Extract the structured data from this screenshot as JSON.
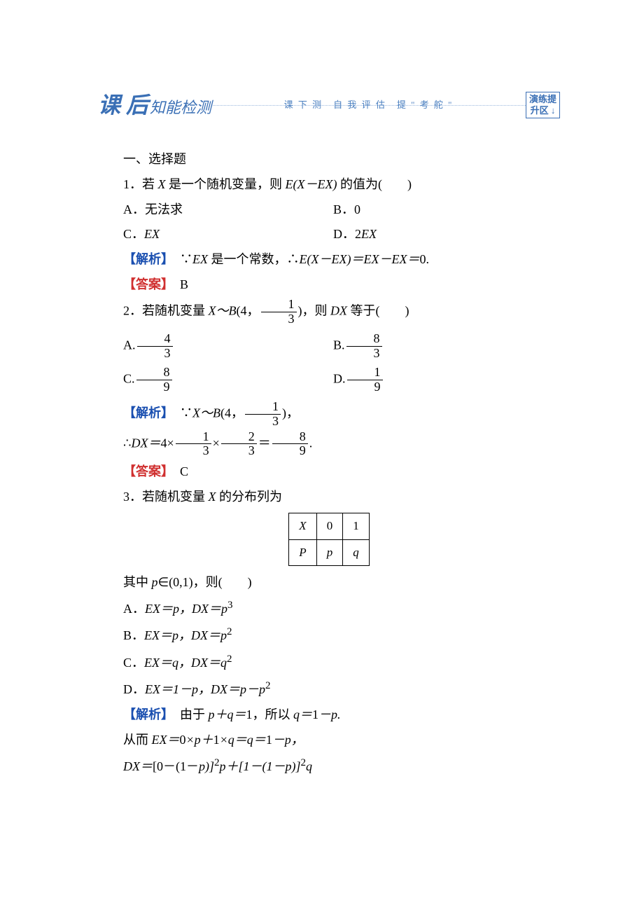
{
  "banner": {
    "big": "课 后",
    "small": "知能检测",
    "mid": "课 下 测　自 我 评 估　提 \" 考 舵 \"",
    "right_l1": "演练提",
    "right_l2": "升区 ↓"
  },
  "section_heading": "一、选择题",
  "q1": {
    "stem_a": "1．若 ",
    "stem_b": " 是一个随机变量，则 ",
    "stem_c": " 的值为(　　)",
    "X": "X",
    "expr": "E(X－EX)",
    "optA": "A．无法求",
    "optB": "B．0",
    "optC_a": "C．",
    "optC_b": "EX",
    "optD_a": "D．2",
    "optD_b": "EX",
    "expl_label": "【解析】",
    "expl_a": "∵",
    "expl_b": "EX",
    "expl_c": " 是一个常数，∴",
    "expl_d": "E(X－EX)＝EX－EX＝",
    "expl_e": "0.",
    "ans_label": "【答案】",
    "ans": "B"
  },
  "q2": {
    "stem_a": "2．若随机变量 ",
    "stem_b": "X～B",
    "stem_c": "(4，",
    "frac1_num": "1",
    "frac1_den": "3",
    "stem_d": ")，则 ",
    "stem_e": "DX",
    "stem_f": " 等于(　　)",
    "optA": "A.",
    "A_num": "4",
    "A_den": "3",
    "optB": "B.",
    "B_num": "8",
    "B_den": "3",
    "optC": "C.",
    "C_num": "8",
    "C_den": "9",
    "optD": "D.",
    "D_num": "1",
    "D_den": "9",
    "expl_label": "【解析】",
    "expl_a": "∵",
    "expl_b": "X～B",
    "expl_c": "(4，",
    "expl_d": ")，",
    "line2_a": "∴",
    "line2_b": "DX＝",
    "line2_c": "4×",
    "f2n": "1",
    "f2d": "3",
    "line2_d": "×",
    "f3n": "2",
    "f3d": "3",
    "line2_e": "＝",
    "f4n": "8",
    "f4d": "9",
    "line2_f": ".",
    "ans_label": "【答案】",
    "ans": "C"
  },
  "q3": {
    "stem_a": "3．若随机变量 ",
    "stem_b": "X",
    "stem_c": " 的分布列为",
    "t_X": "X",
    "t_0": "0",
    "t_1": "1",
    "t_P": "P",
    "t_p": "p",
    "t_q": "q",
    "cond_a": "其中 ",
    "cond_b": "p",
    "cond_c": "∈(0,1)，则(　　)",
    "optA_a": "A．",
    "optA_b": "EX＝p，DX＝p",
    "optA_c": "3",
    "optB_a": "B．",
    "optB_b": "EX＝p，DX＝p",
    "optB_c": "2",
    "optC_a": "C．",
    "optC_b": "EX＝q，DX＝q",
    "optC_c": "2",
    "optD_a": "D．",
    "optD_b": "EX＝1－p，DX＝p－p",
    "optD_c": "2",
    "expl_label": "【解析】",
    "expl_a": "由于 ",
    "expl_b": "p＋q＝",
    "expl_c": "1，所以 ",
    "expl_d": "q＝",
    "expl_e": "1",
    "expl_f": "－p.",
    "l2_a": "从而 ",
    "l2_b": "EX＝",
    "l2_c": "0",
    "l2_d": "×p＋",
    "l2_e": "1",
    "l2_f": "×q＝q＝",
    "l2_g": "1",
    "l2_h": "－p，",
    "l3_a": "DX＝",
    "l3_b": "[0－(1－",
    "l3_c": "p)]",
    "l3_sup2a": "2",
    "l3_d": "p＋[1－(1－p)]",
    "l3_sup2b": "2",
    "l3_e": "q"
  }
}
